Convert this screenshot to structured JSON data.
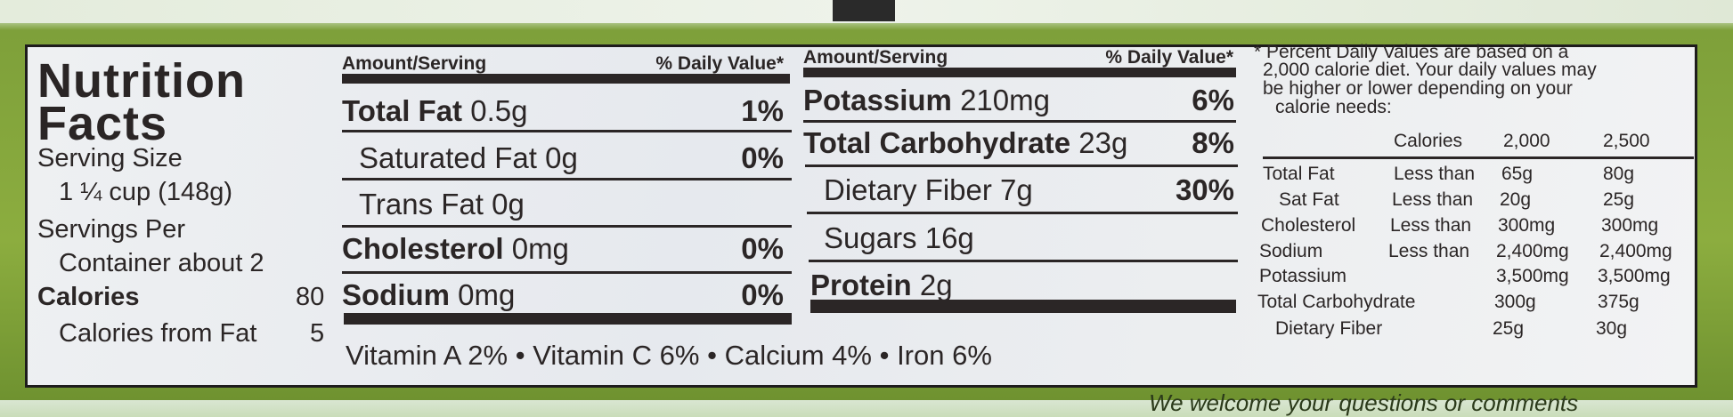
{
  "title_line1": "Nutrition",
  "title_line2": "Facts",
  "serving": {
    "size_label": "Serving Size",
    "size_value": "1 ¼ cup (148g)",
    "servings_label": "Servings Per",
    "servings_value": "Container about 2",
    "calories_label": "Calories",
    "calories_value": "80",
    "calories_fat_label": "Calories from Fat",
    "calories_fat_value": "5"
  },
  "headers": {
    "amount": "Amount/Serving",
    "dv": "% Daily Value*"
  },
  "left_rows": [
    {
      "name": "Total Fat",
      "amount": "0.5g",
      "dv": "1%"
    },
    {
      "name": "Saturated Fat 0g",
      "amount": "",
      "dv": "0%"
    },
    {
      "name": "Trans Fat 0g",
      "amount": "",
      "dv": ""
    },
    {
      "name": "Cholesterol",
      "amount": "0mg",
      "dv": "0%"
    },
    {
      "name": "Sodium",
      "amount": "0mg",
      "dv": "0%"
    }
  ],
  "right_rows": [
    {
      "name": "Potassium",
      "amount": "210mg",
      "dv": "6%"
    },
    {
      "name": "Total Carbohydrate",
      "amount": "23g",
      "dv": "8%"
    },
    {
      "name": "Dietary Fiber 7g",
      "amount": "",
      "dv": "30%"
    },
    {
      "name": "Sugars 16g",
      "amount": "",
      "dv": ""
    },
    {
      "name": "Protein",
      "amount": "2g",
      "dv": ""
    }
  ],
  "vitamins": [
    "Vitamin A 2%",
    "Vitamin C 6%",
    "Calcium 4%",
    "Iron 6%"
  ],
  "vitamin_separator": "•",
  "footnote": [
    "* Percent Daily Values are based on a",
    "2,000 calorie diet. Your daily values may",
    "be higher or lower depending on your",
    "calorie needs:"
  ],
  "dv_table": {
    "header": [
      "Calories",
      "2,000",
      "2,500"
    ],
    "rows": [
      [
        "Total Fat",
        "Less than",
        "65g",
        "80g"
      ],
      [
        "Sat Fat",
        "Less than",
        "20g",
        "25g"
      ],
      [
        "Cholesterol",
        "Less than",
        "300mg",
        "300mg"
      ],
      [
        "Sodium",
        "Less than",
        "2,400mg",
        "2,400mg"
      ],
      [
        "Potassium",
        "",
        "3,500mg",
        "3,500mg"
      ],
      [
        "Total Carbohydrate",
        "",
        "300g",
        "375g"
      ],
      [
        "Dietary Fiber",
        "",
        "25g",
        "30g"
      ]
    ]
  },
  "bottom_text": "We welcome your questions or comments",
  "colors": {
    "package_green": "#8cad3f",
    "label_bg": "#eceef0",
    "ink": "#2b2626"
  }
}
